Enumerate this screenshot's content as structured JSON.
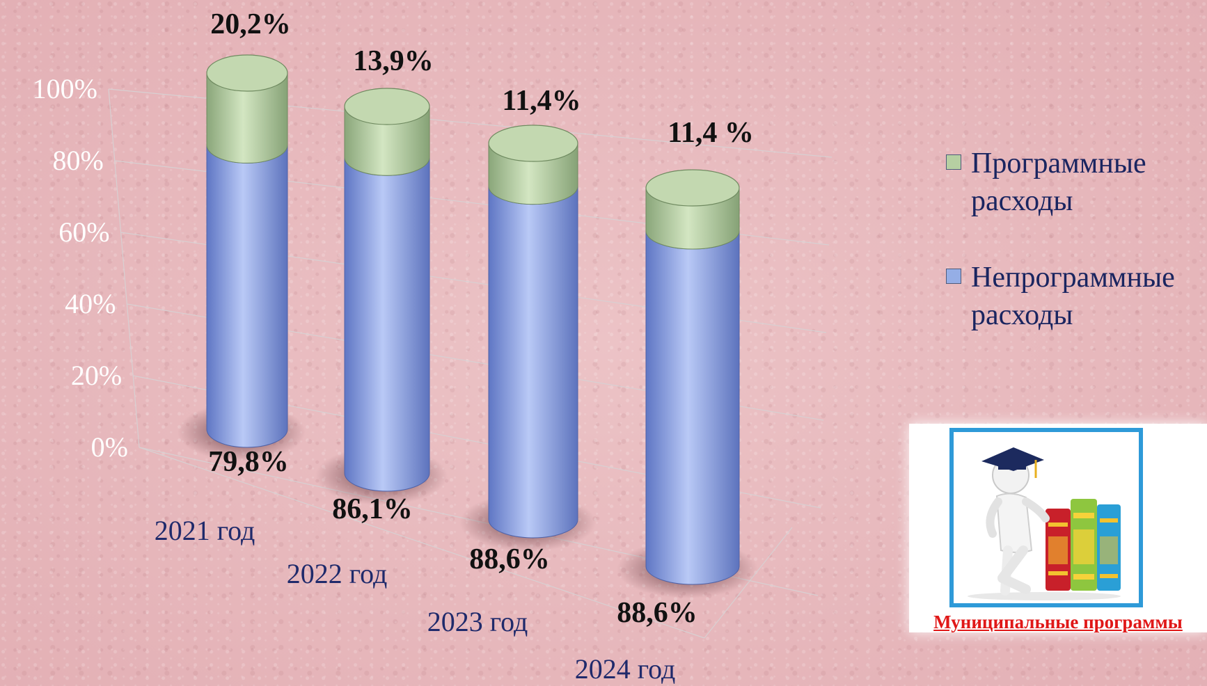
{
  "chart_data": {
    "type": "bar",
    "style": "3d-cylinder-stacked-100",
    "categories": [
      "2021 год",
      "2022 год",
      "2023 год",
      "2024 год"
    ],
    "series": [
      {
        "name": "Непрограммные\nрасходы",
        "values": [
          79.8,
          86.1,
          88.6,
          88.6
        ],
        "labels": [
          "79,8%",
          "86,1%",
          "88,6%",
          "88,6%"
        ],
        "color": "#95aee6"
      },
      {
        "name": "Программные\nрасходы",
        "values": [
          20.2,
          13.9,
          11.4,
          11.4
        ],
        "labels": [
          "20,2%",
          "13,9%",
          "11,4%",
          "11,4 %"
        ],
        "color": "#b6cfa2"
      }
    ],
    "yticks": [
      "0%",
      "20%",
      "40%",
      "60%",
      "80%",
      "100%"
    ],
    "ylim": [
      0,
      100
    ],
    "grid": true,
    "legend_position": "right"
  },
  "legend": {
    "programmnye": {
      "label": "Программные\nрасходы",
      "color": "#b6cfa2"
    },
    "neprogrammnye": {
      "label": "Непрограммные\nрасходы",
      "color": "#95aee6"
    }
  },
  "promo": {
    "caption": "Муниципальные программы",
    "icon": "graduate-figure-with-books-icon"
  }
}
